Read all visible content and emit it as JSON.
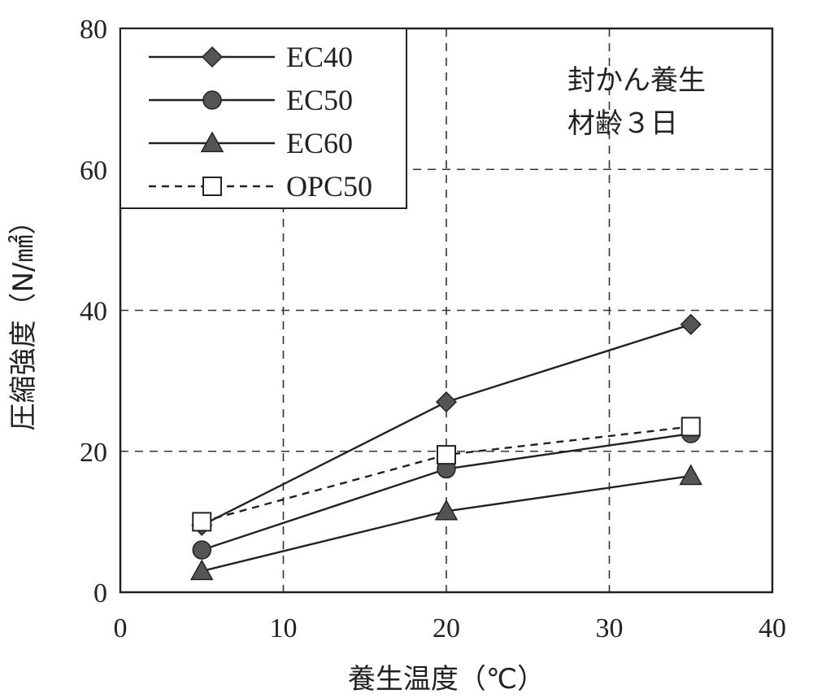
{
  "chart_data": {
    "type": "line",
    "xlabel": "養生温度（℃）",
    "ylabel": "圧縮強度（N/㎟）",
    "xlim": [
      0,
      40
    ],
    "ylim": [
      0,
      80
    ],
    "xticks": [
      0,
      10,
      20,
      30,
      40
    ],
    "yticks": [
      0,
      20,
      40,
      60,
      80
    ],
    "grid": "dashed",
    "legend_position": "top-left",
    "annotation": [
      "封かん養生",
      "材齢３日"
    ],
    "x": [
      5,
      20,
      35
    ],
    "series": [
      {
        "name": "EC40",
        "marker": "diamond",
        "line": "solid",
        "values": [
          9.5,
          27,
          38
        ]
      },
      {
        "name": "EC50",
        "marker": "circle",
        "line": "solid",
        "values": [
          6,
          17.5,
          22.5
        ]
      },
      {
        "name": "EC60",
        "marker": "triangle",
        "line": "solid",
        "values": [
          3,
          11.5,
          16.5
        ]
      },
      {
        "name": "OPC50",
        "marker": "open-square",
        "line": "dashed",
        "values": [
          10,
          19.5,
          23.5
        ]
      }
    ]
  }
}
